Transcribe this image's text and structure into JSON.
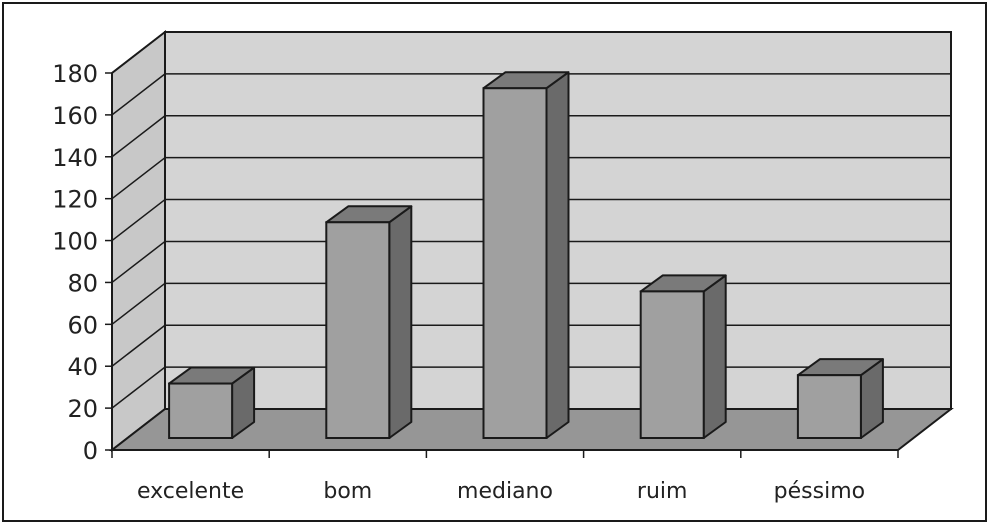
{
  "chart_data": {
    "type": "bar",
    "title": "",
    "xlabel": "",
    "ylabel": "",
    "categories": [
      "excelente",
      "bom",
      "mediano",
      "ruim",
      "péssimo"
    ],
    "values": [
      26,
      103,
      167,
      70,
      30
    ],
    "ylim": [
      0,
      180
    ],
    "yticks": [
      0,
      20,
      40,
      60,
      80,
      100,
      120,
      140,
      160,
      180
    ],
    "grid": true,
    "legend": "none",
    "three_d": true
  },
  "colors": {
    "back_wall": "#d4d4d4",
    "side_wall": "#c8c8c8",
    "floor": "#969696",
    "bar_front": "#a0a0a0",
    "bar_top": "#7a7a7a",
    "bar_side": "#6a6a6a",
    "outline": "#1a1a1a"
  }
}
